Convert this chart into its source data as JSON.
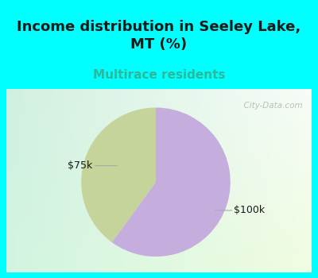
{
  "title": "Income distribution in Seeley Lake,\nMT (%)",
  "subtitle": "Multirace residents",
  "title_fontsize": 13,
  "subtitle_fontsize": 11,
  "title_color": "#1a1a1a",
  "subtitle_color": "#2db89a",
  "slices": [
    {
      "label": "$75k",
      "value": 40,
      "color": "#c5d49a"
    },
    {
      "label": "$100k",
      "value": 60,
      "color": "#c5aedd"
    }
  ],
  "bg_cyan": "#00ffff",
  "chart_bg_tl": [
    0.82,
    0.94,
    0.88
  ],
  "chart_bg_tr": [
    0.97,
    0.99,
    0.97
  ],
  "chart_bg_bl": [
    0.82,
    0.96,
    0.88
  ],
  "chart_bg_br": [
    0.94,
    0.99,
    0.88
  ],
  "watermark": "  City-Data.com",
  "startangle": 90,
  "border_cyan": "#00ffff",
  "border_thickness": 6
}
